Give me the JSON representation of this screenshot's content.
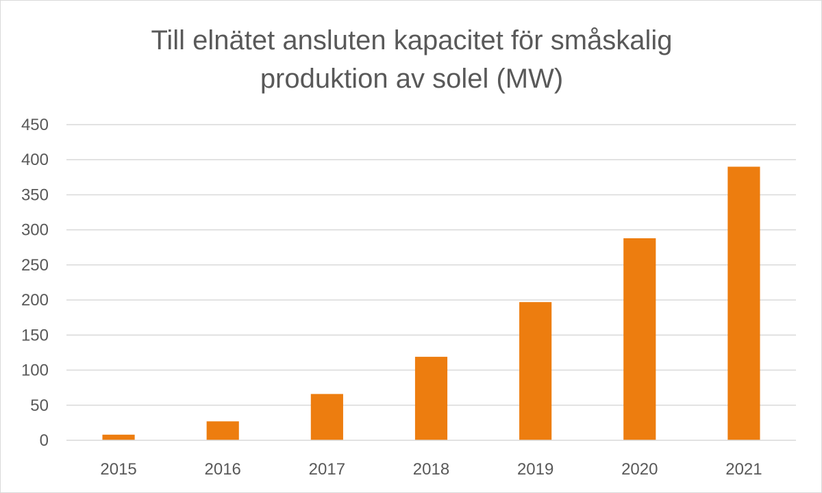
{
  "chart_data": {
    "type": "bar",
    "title_line1": "Till elnätet ansluten kapacitet för småskalig",
    "title_line2": "produktion av solel (MW)",
    "categories": [
      "2015",
      "2016",
      "2017",
      "2018",
      "2019",
      "2020",
      "2021"
    ],
    "values": [
      8,
      27,
      66,
      119,
      197,
      288,
      390
    ],
    "ylim": [
      0,
      450
    ],
    "yticks": [
      0,
      50,
      100,
      150,
      200,
      250,
      300,
      350,
      400,
      450
    ],
    "grid": true,
    "legend": "none",
    "bar_color": "#ed7d0f"
  }
}
